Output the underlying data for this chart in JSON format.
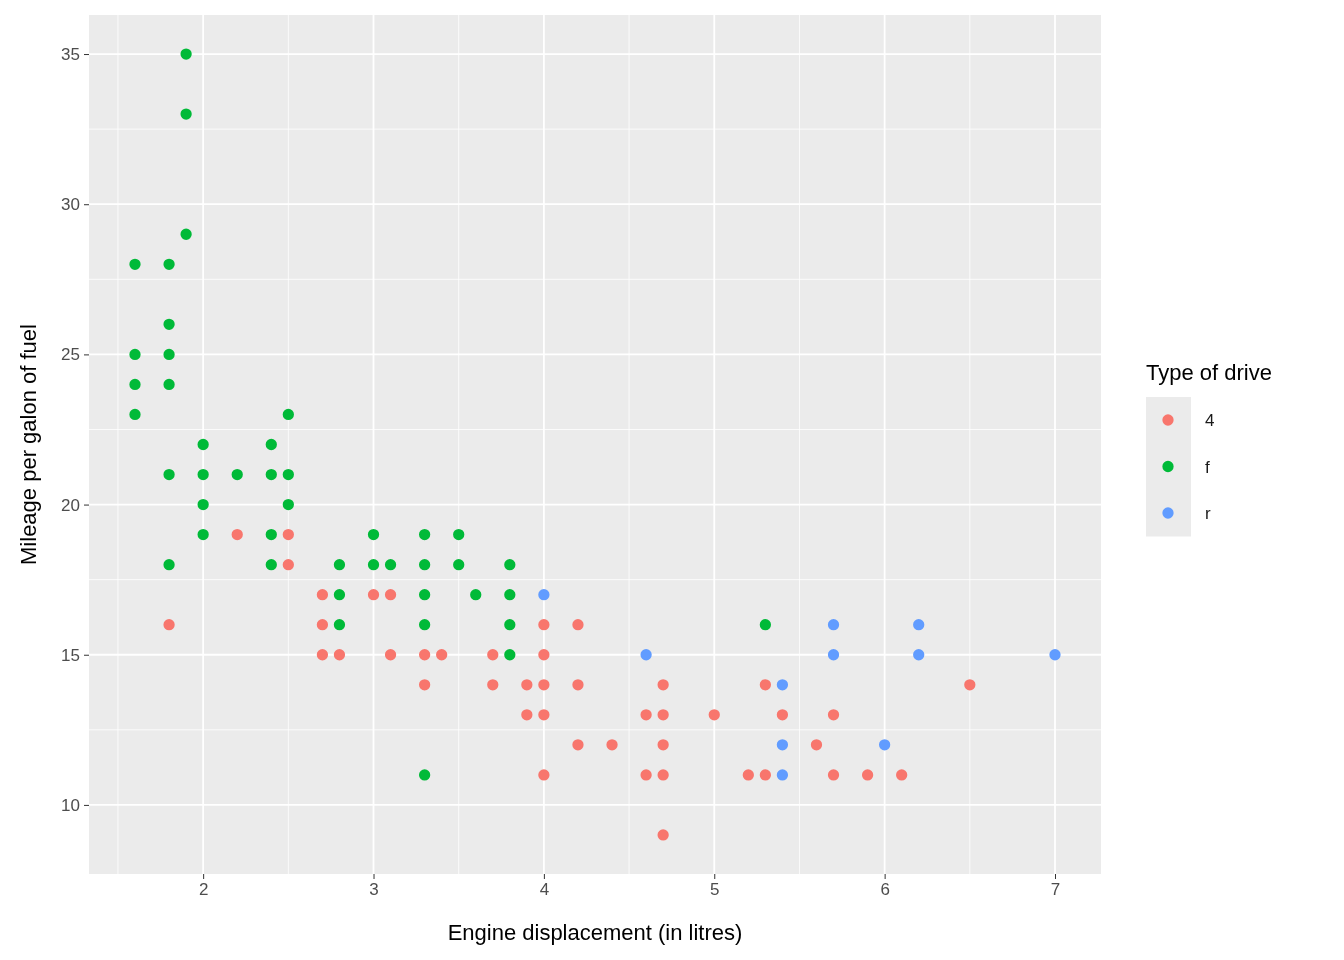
{
  "chart_data": {
    "type": "scatter",
    "xlabel": "Engine displacement (in litres)",
    "ylabel": "Mileage per galon of fuel",
    "legend_title": "Type of drive",
    "xlim": [
      1.33,
      7.27
    ],
    "ylim": [
      7.7,
      36.3
    ],
    "xticks": [
      2,
      3,
      4,
      5,
      6,
      7
    ],
    "yticks": [
      10,
      15,
      20,
      25,
      30,
      35
    ],
    "grid": true,
    "legend": "right",
    "marker": "circle",
    "series": [
      {
        "name": "4",
        "color": "#f8766d",
        "x": [
          1.8,
          2.2,
          2.5,
          2.5,
          2.7,
          2.7,
          2.7,
          2.8,
          3,
          3.1,
          3.1,
          3.3,
          3.3,
          3.4,
          3.7,
          3.7,
          3.9,
          3.9,
          4,
          4,
          4,
          4,
          4,
          4.2,
          4.2,
          4.2,
          4.4,
          4.6,
          4.6,
          4.7,
          4.7,
          4.7,
          4.7,
          4.7,
          5,
          5.2,
          5.3,
          5.3,
          5.4,
          5.6,
          5.7,
          5.7,
          5.9,
          6.1,
          6.5
        ],
        "values": [
          16,
          19,
          19,
          18,
          17,
          16,
          15,
          15,
          17,
          17,
          15,
          15,
          14,
          15,
          15,
          14,
          14,
          13,
          16,
          15,
          14,
          13,
          11,
          16,
          14,
          12,
          12,
          13,
          11,
          14,
          13,
          12,
          11,
          9,
          13,
          11,
          14,
          11,
          13,
          12,
          13,
          11,
          11,
          11,
          14
        ]
      },
      {
        "name": "f",
        "color": "#00ba38",
        "x": [
          1.6,
          1.6,
          1.6,
          1.6,
          1.8,
          1.8,
          1.8,
          1.8,
          1.8,
          1.8,
          1.9,
          1.9,
          1.9,
          2,
          2,
          2,
          2,
          2.2,
          2.4,
          2.4,
          2.4,
          2.4,
          2.5,
          2.5,
          2.5,
          2.8,
          2.8,
          2.8,
          3,
          3,
          3.1,
          3.3,
          3.3,
          3.3,
          3.3,
          3.3,
          3.5,
          3.5,
          3.6,
          3.8,
          3.8,
          3.8,
          3.8,
          5.3
        ],
        "values": [
          28,
          25,
          24,
          23,
          28,
          26,
          25,
          24,
          21,
          18,
          35,
          33,
          29,
          22,
          21,
          20,
          19,
          21,
          22,
          21,
          19,
          18,
          23,
          21,
          20,
          18,
          17,
          16,
          19,
          18,
          18,
          19,
          18,
          17,
          16,
          11,
          19,
          18,
          17,
          18,
          17,
          16,
          15,
          16
        ]
      },
      {
        "name": "r",
        "color": "#619cff",
        "x": [
          4,
          4.6,
          5.4,
          5.4,
          5.4,
          5.7,
          5.7,
          6,
          6.2,
          6.2,
          7
        ],
        "values": [
          17,
          15,
          14,
          12,
          11,
          16,
          15,
          12,
          16,
          15,
          15
        ]
      }
    ]
  }
}
